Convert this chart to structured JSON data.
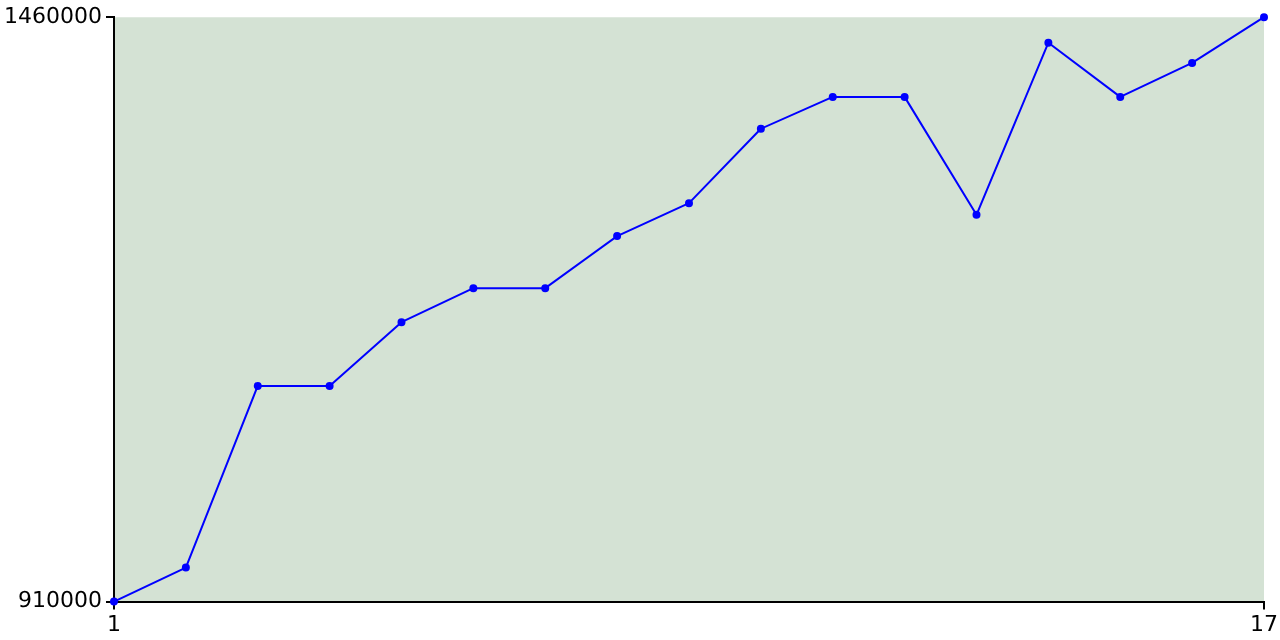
{
  "chart_data": {
    "type": "line",
    "x": [
      1,
      2,
      3,
      4,
      5,
      6,
      7,
      8,
      9,
      10,
      11,
      12,
      13,
      14,
      15,
      16,
      17
    ],
    "series": [
      {
        "color": "#0000ff",
        "values": [
          910000,
          942000,
          1113000,
          1113000,
          1173000,
          1205000,
          1205000,
          1254000,
          1285000,
          1355000,
          1385000,
          1385000,
          1274000,
          1436000,
          1385000,
          1417000,
          1460000
        ]
      }
    ],
    "xlim": [
      1,
      17
    ],
    "xticks": [
      1,
      17
    ],
    "ylim": [
      910000,
      1460000
    ],
    "yticks": [
      910000,
      1460000
    ],
    "grid": false,
    "legend": false,
    "marker": "circle",
    "line_style": "solid"
  }
}
